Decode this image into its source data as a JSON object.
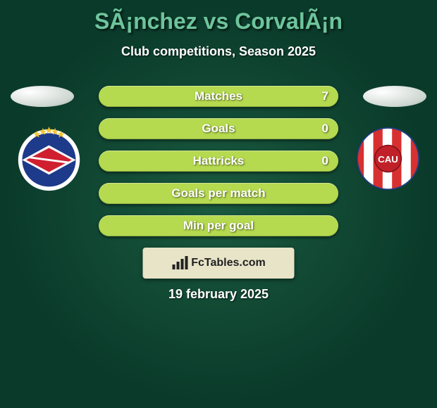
{
  "title": {
    "text": "SÃ¡nchez vs CorvalÃ¡n",
    "color": "#6ec49c",
    "fontsize": 32
  },
  "subtitle": "Club competitions, Season 2025",
  "date": "19 february 2025",
  "logo_text": "FcTables.com",
  "row": {
    "height": 30,
    "gap": 16,
    "track_color": "#3b7a5b",
    "fill_color": "#b5d94f",
    "label_color": "#ffffff",
    "value_color": "#ffffff",
    "fontsize": 17,
    "shadow": "0 2px 4px rgba(0,0,0,0.5)"
  },
  "stats": [
    {
      "label": "Matches",
      "value": "7",
      "fill_pct": 100
    },
    {
      "label": "Goals",
      "value": "0",
      "fill_pct": 100
    },
    {
      "label": "Hattricks",
      "value": "0",
      "fill_pct": 100
    },
    {
      "label": "Goals per match",
      "value": "",
      "fill_pct": 100
    },
    {
      "label": "Min per goal",
      "value": "",
      "fill_pct": 100
    }
  ],
  "badge_left": {
    "ring_color": "#ffffff",
    "inner_color": "#1e3a8a",
    "accent": "#d02030",
    "stars": "#f4c430"
  },
  "badge_right": {
    "ring_color": "#ffffff",
    "stripe_red": "#d83030",
    "stripe_white": "#ffffff",
    "cau_bg": "#c02028"
  },
  "background": {
    "inner": "#1a5a3f",
    "outer": "#0a3a2a"
  }
}
